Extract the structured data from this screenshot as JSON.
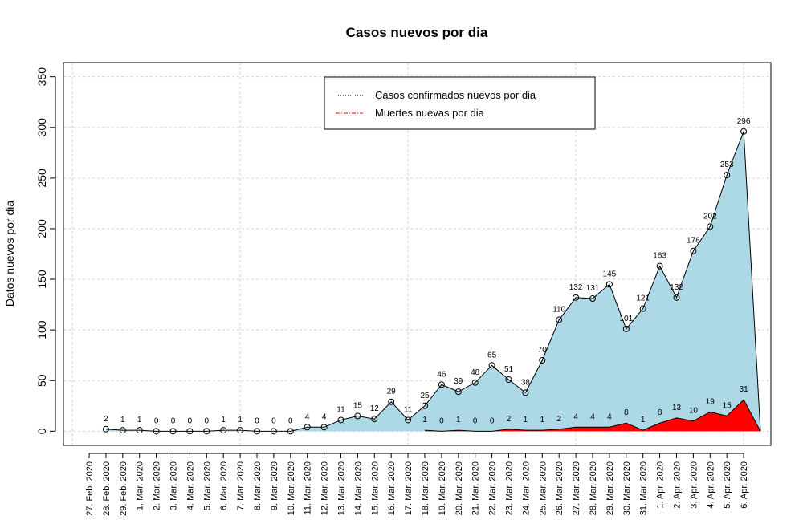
{
  "chart_data": {
    "type": "area",
    "title": "Casos nuevos por dia",
    "y_label": "Datos nuevos por dia",
    "categories": [
      "27. Feb. 2020",
      "28. Feb. 2020",
      "29. Feb. 2020",
      "1. Mar. 2020",
      "2. Mar. 2020",
      "3. Mar. 2020",
      "4. Mar. 2020",
      "5. Mar. 2020",
      "6. Mar. 2020",
      "7. Mar. 2020",
      "8. Mar. 2020",
      "9. Mar. 2020",
      "10. Mar. 2020",
      "11. Mar. 2020",
      "12. Mar. 2020",
      "13. Mar. 2020",
      "14. Mar. 2020",
      "15. Mar. 2020",
      "16. Mar. 2020",
      "17. Mar. 2020",
      "18. Mar. 2020",
      "19. Mar. 2020",
      "20. Mar. 2020",
      "21. Mar. 2020",
      "22. Mar. 2020",
      "23. Mar. 2020",
      "24. Mar. 2020",
      "25. Mar. 2020",
      "26. Mar. 2020",
      "27. Mar. 2020",
      "28. Mar. 2020",
      "29. Mar. 2020",
      "30. Mar. 2020",
      "31. Mar. 2020",
      "1. Apr. 2020",
      "2. Apr. 2020",
      "3. Apr. 2020",
      "4. Apr. 2020",
      "5. Apr. 2020",
      "6. Apr. 2020"
    ],
    "series": [
      {
        "name": "Casos confirmados nuevos por dia",
        "color": "#add8e6",
        "line_color": "#000000",
        "values": [
          null,
          2,
          1,
          1,
          0,
          0,
          0,
          0,
          1,
          1,
          0,
          0,
          0,
          4,
          4,
          11,
          15,
          12,
          29,
          11,
          25,
          46,
          39,
          48,
          65,
          51,
          38,
          70,
          110,
          132,
          131,
          145,
          101,
          121,
          163,
          132,
          178,
          202,
          253,
          296
        ]
      },
      {
        "name": "Muertes nuevas por dia",
        "color": "#ff0000",
        "line_color": "#ff0000",
        "values": [
          null,
          null,
          null,
          null,
          null,
          null,
          null,
          null,
          null,
          null,
          null,
          null,
          null,
          null,
          null,
          null,
          null,
          null,
          null,
          null,
          1,
          0,
          1,
          0,
          0,
          2,
          1,
          1,
          2,
          4,
          4,
          4,
          8,
          1,
          8,
          13,
          10,
          19,
          15,
          31
        ]
      }
    ],
    "ylim": [
      -14,
      364
    ],
    "yticks": [
      0,
      50,
      100,
      150,
      200,
      250,
      300,
      350
    ],
    "grid": true,
    "legend": "top"
  }
}
